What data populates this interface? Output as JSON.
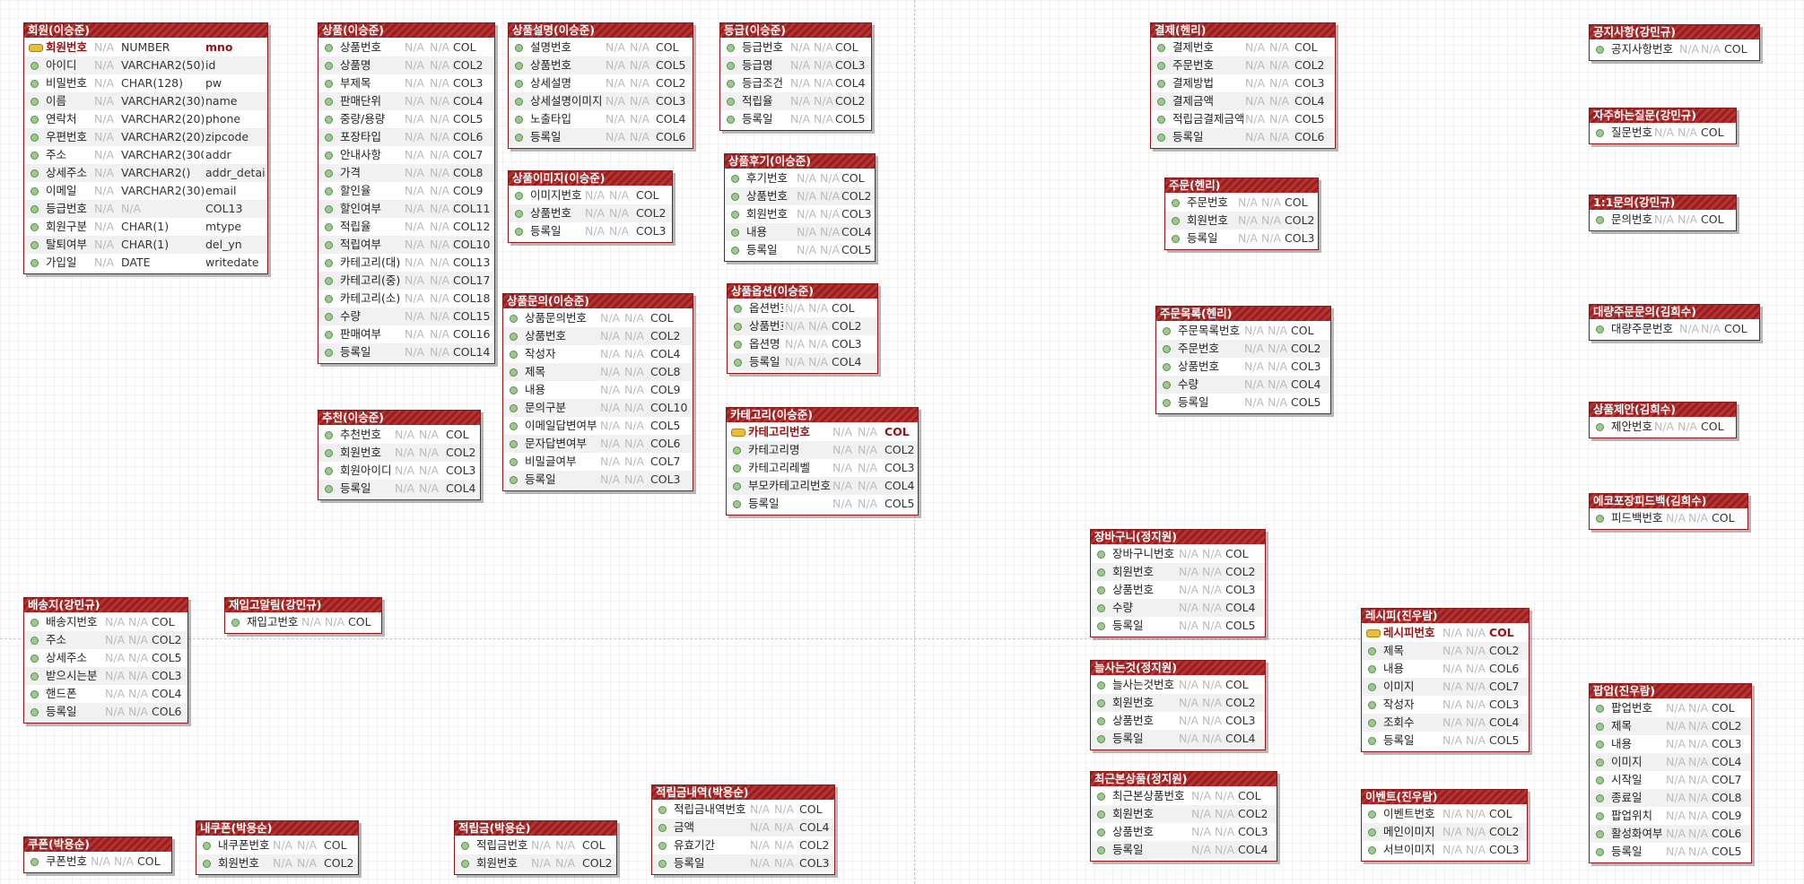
{
  "colors": {
    "header": "#9a1e1e",
    "pk_text": "#9b0f0f",
    "pk_icon": "#e7bf3c",
    "attr_icon": "#9cc98e"
  },
  "entities": [
    {
      "title": "회원(이승준)",
      "attrs": [
        {
          "name": "회원번호",
          "null": "N/A",
          "type": "NUMBER",
          "col": "mno",
          "pk": true
        },
        {
          "name": "아이디",
          "null": "N/A",
          "type": "VARCHAR2(50)",
          "col": "id"
        },
        {
          "name": "비밀번호",
          "null": "N/A",
          "type": "CHAR(128)",
          "col": "pw"
        },
        {
          "name": "이름",
          "null": "N/A",
          "type": "VARCHAR2(30)",
          "col": "name"
        },
        {
          "name": "연락처",
          "null": "N/A",
          "type": "VARCHAR2(20)",
          "col": "phone"
        },
        {
          "name": "우편번호",
          "null": "N/A",
          "type": "VARCHAR2(20)",
          "col": "zipcode"
        },
        {
          "name": "주소",
          "null": "N/A",
          "type": "VARCHAR2(300)",
          "col": "addr"
        },
        {
          "name": "상세주소",
          "null": "N/A",
          "type": "VARCHAR2()",
          "col": "addr_detail"
        },
        {
          "name": "이메일",
          "null": "N/A",
          "type": "VARCHAR2(30)",
          "col": "email"
        },
        {
          "name": "등급번호",
          "null": "N/A",
          "type": "N/A",
          "col": "COL13"
        },
        {
          "name": "회원구분",
          "null": "N/A",
          "type": "CHAR(1)",
          "col": "mtype"
        },
        {
          "name": "탈퇴여부",
          "null": "N/A",
          "type": "CHAR(1)",
          "col": "del_yn"
        },
        {
          "name": "가입일",
          "null": "N/A",
          "type": "DATE",
          "col": "writedate"
        }
      ]
    },
    {
      "title": "상품(이승준)",
      "attrs": [
        {
          "name": "상품번호",
          "null": "N/A",
          "type": "N/A",
          "col": "COL"
        },
        {
          "name": "상품명",
          "null": "N/A",
          "type": "N/A",
          "col": "COL2"
        },
        {
          "name": "부제목",
          "null": "N/A",
          "type": "N/A",
          "col": "COL3"
        },
        {
          "name": "판매단위",
          "null": "N/A",
          "type": "N/A",
          "col": "COL4"
        },
        {
          "name": "중량/용량",
          "null": "N/A",
          "type": "N/A",
          "col": "COL5"
        },
        {
          "name": "포장타입",
          "null": "N/A",
          "type": "N/A",
          "col": "COL6"
        },
        {
          "name": "안내사항",
          "null": "N/A",
          "type": "N/A",
          "col": "COL7"
        },
        {
          "name": "가격",
          "null": "N/A",
          "type": "N/A",
          "col": "COL8"
        },
        {
          "name": "할인율",
          "null": "N/A",
          "type": "N/A",
          "col": "COL9"
        },
        {
          "name": "할인여부",
          "null": "N/A",
          "type": "N/A",
          "col": "COL11"
        },
        {
          "name": "적립율",
          "null": "N/A",
          "type": "N/A",
          "col": "COL12"
        },
        {
          "name": "적립여부",
          "null": "N/A",
          "type": "N/A",
          "col": "COL10"
        },
        {
          "name": "카테고리(대)",
          "null": "N/A",
          "type": "N/A",
          "col": "COL13"
        },
        {
          "name": "카테고리(중)",
          "null": "N/A",
          "type": "N/A",
          "col": "COL17"
        },
        {
          "name": "카테고리(소)",
          "null": "N/A",
          "type": "N/A",
          "col": "COL18"
        },
        {
          "name": "수량",
          "null": "N/A",
          "type": "N/A",
          "col": "COL15"
        },
        {
          "name": "판매여부",
          "null": "N/A",
          "type": "N/A",
          "col": "COL16"
        },
        {
          "name": "등록일",
          "null": "N/A",
          "type": "N/A",
          "col": "COL14"
        }
      ]
    },
    {
      "title": "상품설명(이승준)",
      "attrs": [
        {
          "name": "설명번호",
          "null": "N/A",
          "type": "N/A",
          "col": "COL"
        },
        {
          "name": "상품번호",
          "null": "N/A",
          "type": "N/A",
          "col": "COL5"
        },
        {
          "name": "상세설명",
          "null": "N/A",
          "type": "N/A",
          "col": "COL2"
        },
        {
          "name": "상세설명이미지",
          "null": "N/A",
          "type": "N/A",
          "col": "COL3"
        },
        {
          "name": "노출타입",
          "null": "N/A",
          "type": "N/A",
          "col": "COL4"
        },
        {
          "name": "등록일",
          "null": "N/A",
          "type": "N/A",
          "col": "COL6"
        }
      ]
    },
    {
      "title": "등급(이승준)",
      "attrs": [
        {
          "name": "등급번호",
          "null": "N/A",
          "type": "N/A",
          "col": "COL"
        },
        {
          "name": "등급명",
          "null": "N/A",
          "type": "N/A",
          "col": "COL3"
        },
        {
          "name": "등급조건",
          "null": "N/A",
          "type": "N/A",
          "col": "COL4"
        },
        {
          "name": "적립율",
          "null": "N/A",
          "type": "N/A",
          "col": "COL2"
        },
        {
          "name": "등록일",
          "null": "N/A",
          "type": "N/A",
          "col": "COL5"
        }
      ]
    },
    {
      "title": "상품이미지(이승준)",
      "attrs": [
        {
          "name": "이미지번호",
          "null": "N/A",
          "type": "N/A",
          "col": "COL"
        },
        {
          "name": "상품번호",
          "null": "N/A",
          "type": "N/A",
          "col": "COL2"
        },
        {
          "name": "등록일",
          "null": "N/A",
          "type": "N/A",
          "col": "COL3"
        }
      ]
    },
    {
      "title": "상품후기(이승준)",
      "attrs": [
        {
          "name": "후기번호",
          "null": "N/A",
          "type": "N/A",
          "col": "COL"
        },
        {
          "name": "상품번호",
          "null": "N/A",
          "type": "N/A",
          "col": "COL2"
        },
        {
          "name": "회원번호",
          "null": "N/A",
          "type": "N/A",
          "col": "COL3"
        },
        {
          "name": "내용",
          "null": "N/A",
          "type": "N/A",
          "col": "COL4"
        },
        {
          "name": "등록일",
          "null": "N/A",
          "type": "N/A",
          "col": "COL5"
        }
      ]
    },
    {
      "title": "상품옵션(이승준)",
      "attrs": [
        {
          "name": "옵션번호",
          "null": "N/A",
          "type": "N/A",
          "col": "COL"
        },
        {
          "name": "상품번호",
          "null": "N/A",
          "type": "N/A",
          "col": "COL2"
        },
        {
          "name": "옵션명",
          "null": "N/A",
          "type": "N/A",
          "col": "COL3"
        },
        {
          "name": "등록일",
          "null": "N/A",
          "type": "N/A",
          "col": "COL4"
        }
      ]
    },
    {
      "title": "상품문의(이승준)",
      "attrs": [
        {
          "name": "상품문의번호",
          "null": "N/A",
          "type": "N/A",
          "col": "COL"
        },
        {
          "name": "상품번호",
          "null": "N/A",
          "type": "N/A",
          "col": "COL2"
        },
        {
          "name": "작성자",
          "null": "N/A",
          "type": "N/A",
          "col": "COL4"
        },
        {
          "name": "제목",
          "null": "N/A",
          "type": "N/A",
          "col": "COL8"
        },
        {
          "name": "내용",
          "null": "N/A",
          "type": "N/A",
          "col": "COL9"
        },
        {
          "name": "문의구분",
          "null": "N/A",
          "type": "N/A",
          "col": "COL10"
        },
        {
          "name": "이메일답변여부",
          "null": "N/A",
          "type": "N/A",
          "col": "COL5"
        },
        {
          "name": "문자답변여부",
          "null": "N/A",
          "type": "N/A",
          "col": "COL6"
        },
        {
          "name": "비밀글여부",
          "null": "N/A",
          "type": "N/A",
          "col": "COL7"
        },
        {
          "name": "등록일",
          "null": "N/A",
          "type": "N/A",
          "col": "COL3"
        }
      ]
    },
    {
      "title": "추천(이승준)",
      "attrs": [
        {
          "name": "추천번호",
          "null": "N/A",
          "type": "N/A",
          "col": "COL"
        },
        {
          "name": "회원번호",
          "null": "N/A",
          "type": "N/A",
          "col": "COL2"
        },
        {
          "name": "회원아이디",
          "null": "N/A",
          "type": "N/A",
          "col": "COL3"
        },
        {
          "name": "등록일",
          "null": "N/A",
          "type": "N/A",
          "col": "COL4"
        }
      ]
    },
    {
      "title": "카테고리(이승준)",
      "attrs": [
        {
          "name": "카테고리번호",
          "null": "N/A",
          "type": "N/A",
          "col": "COL",
          "pk": true
        },
        {
          "name": "카테고리명",
          "null": "N/A",
          "type": "N/A",
          "col": "COL2"
        },
        {
          "name": "카테고리레벨",
          "null": "N/A",
          "type": "N/A",
          "col": "COL3"
        },
        {
          "name": "부모카테고리번호",
          "null": "N/A",
          "type": "N/A",
          "col": "COL4"
        },
        {
          "name": "등록일",
          "null": "N/A",
          "type": "N/A",
          "col": "COL5"
        }
      ]
    },
    {
      "title": "결제(헨리)",
      "attrs": [
        {
          "name": "결제번호",
          "null": "N/A",
          "type": "N/A",
          "col": "COL"
        },
        {
          "name": "주문번호",
          "null": "N/A",
          "type": "N/A",
          "col": "COL2"
        },
        {
          "name": "결제방법",
          "null": "N/A",
          "type": "N/A",
          "col": "COL3"
        },
        {
          "name": "결제금액",
          "null": "N/A",
          "type": "N/A",
          "col": "COL4"
        },
        {
          "name": "적립금결제금액",
          "null": "N/A",
          "type": "N/A",
          "col": "COL5"
        },
        {
          "name": "등록일",
          "null": "N/A",
          "type": "N/A",
          "col": "COL6"
        }
      ]
    },
    {
      "title": "주문(헨리)",
      "attrs": [
        {
          "name": "주문번호",
          "null": "N/A",
          "type": "N/A",
          "col": "COL"
        },
        {
          "name": "회원번호",
          "null": "N/A",
          "type": "N/A",
          "col": "COL2"
        },
        {
          "name": "등록일",
          "null": "N/A",
          "type": "N/A",
          "col": "COL3"
        }
      ]
    },
    {
      "title": "주문목록(헨리)",
      "attrs": [
        {
          "name": "주문목록번호",
          "null": "N/A",
          "type": "N/A",
          "col": "COL"
        },
        {
          "name": "주문번호",
          "null": "N/A",
          "type": "N/A",
          "col": "COL2"
        },
        {
          "name": "상품번호",
          "null": "N/A",
          "type": "N/A",
          "col": "COL3"
        },
        {
          "name": "수량",
          "null": "N/A",
          "type": "N/A",
          "col": "COL4"
        },
        {
          "name": "등록일",
          "null": "N/A",
          "type": "N/A",
          "col": "COL5"
        }
      ]
    },
    {
      "title": "공지사항(강민규)",
      "attrs": [
        {
          "name": "공지사항번호",
          "null": "N/A",
          "type": "N/A",
          "col": "COL"
        }
      ]
    },
    {
      "title": "자주하는질문(강민규)",
      "attrs": [
        {
          "name": "질문번호",
          "null": "N/A",
          "type": "N/A",
          "col": "COL"
        }
      ]
    },
    {
      "title": "1:1문의(강민규)",
      "attrs": [
        {
          "name": "문의번호",
          "null": "N/A",
          "type": "N/A",
          "col": "COL"
        }
      ]
    },
    {
      "title": "대량주문문의(김희수)",
      "attrs": [
        {
          "name": "대량주문번호",
          "null": "N/A",
          "type": "N/A",
          "col": "COL"
        }
      ]
    },
    {
      "title": "상품제안(김희수)",
      "attrs": [
        {
          "name": "제안번호",
          "null": "N/A",
          "type": "N/A",
          "col": "COL"
        }
      ]
    },
    {
      "title": "에코포장피드백(김희수)",
      "attrs": [
        {
          "name": "피드백번호",
          "null": "N/A",
          "type": "N/A",
          "col": "COL"
        }
      ]
    },
    {
      "title": "장바구니(정지원)",
      "attrs": [
        {
          "name": "장바구니번호",
          "null": "N/A",
          "type": "N/A",
          "col": "COL"
        },
        {
          "name": "회원번호",
          "null": "N/A",
          "type": "N/A",
          "col": "COL2"
        },
        {
          "name": "상품번호",
          "null": "N/A",
          "type": "N/A",
          "col": "COL3"
        },
        {
          "name": "수량",
          "null": "N/A",
          "type": "N/A",
          "col": "COL4"
        },
        {
          "name": "등록일",
          "null": "N/A",
          "type": "N/A",
          "col": "COL5"
        }
      ]
    },
    {
      "title": "늘사는것(정지원)",
      "attrs": [
        {
          "name": "늘사는것번호",
          "null": "N/A",
          "type": "N/A",
          "col": "COL"
        },
        {
          "name": "회원번호",
          "null": "N/A",
          "type": "N/A",
          "col": "COL2"
        },
        {
          "name": "상품번호",
          "null": "N/A",
          "type": "N/A",
          "col": "COL3"
        },
        {
          "name": "등록일",
          "null": "N/A",
          "type": "N/A",
          "col": "COL4"
        }
      ]
    },
    {
      "title": "최근본상품(정지원)",
      "attrs": [
        {
          "name": "최근본상품번호",
          "null": "N/A",
          "type": "N/A",
          "col": "COL"
        },
        {
          "name": "회원번호",
          "null": "N/A",
          "type": "N/A",
          "col": "COL2"
        },
        {
          "name": "상품번호",
          "null": "N/A",
          "type": "N/A",
          "col": "COL3"
        },
        {
          "name": "등록일",
          "null": "N/A",
          "type": "N/A",
          "col": "COL4"
        }
      ]
    },
    {
      "title": "레시피(진우람)",
      "attrs": [
        {
          "name": "레시피번호",
          "null": "N/A",
          "type": "N/A",
          "col": "COL",
          "pk": true
        },
        {
          "name": "제목",
          "null": "N/A",
          "type": "N/A",
          "col": "COL2"
        },
        {
          "name": "내용",
          "null": "N/A",
          "type": "N/A",
          "col": "COL6"
        },
        {
          "name": "이미지",
          "null": "N/A",
          "type": "N/A",
          "col": "COL7"
        },
        {
          "name": "작성자",
          "null": "N/A",
          "type": "N/A",
          "col": "COL3"
        },
        {
          "name": "조회수",
          "null": "N/A",
          "type": "N/A",
          "col": "COL4"
        },
        {
          "name": "등록일",
          "null": "N/A",
          "type": "N/A",
          "col": "COL5"
        }
      ]
    },
    {
      "title": "이벤트(진우람)",
      "attrs": [
        {
          "name": "이벤트번호",
          "null": "N/A",
          "type": "N/A",
          "col": "COL"
        },
        {
          "name": "메인이미지",
          "null": "N/A",
          "type": "N/A",
          "col": "COL2"
        },
        {
          "name": "서브이미지",
          "null": "N/A",
          "type": "N/A",
          "col": "COL3"
        }
      ]
    },
    {
      "title": "팝업(진우람)",
      "attrs": [
        {
          "name": "팝업번호",
          "null": "N/A",
          "type": "N/A",
          "col": "COL"
        },
        {
          "name": "제목",
          "null": "N/A",
          "type": "N/A",
          "col": "COL2"
        },
        {
          "name": "내용",
          "null": "N/A",
          "type": "N/A",
          "col": "COL3"
        },
        {
          "name": "이미지",
          "null": "N/A",
          "type": "N/A",
          "col": "COL4"
        },
        {
          "name": "시작일",
          "null": "N/A",
          "type": "N/A",
          "col": "COL7"
        },
        {
          "name": "종료일",
          "null": "N/A",
          "type": "N/A",
          "col": "COL8"
        },
        {
          "name": "팝업위치",
          "null": "N/A",
          "type": "N/A",
          "col": "COL9"
        },
        {
          "name": "활성화여부",
          "null": "N/A",
          "type": "N/A",
          "col": "COL6"
        },
        {
          "name": "등록일",
          "null": "N/A",
          "type": "N/A",
          "col": "COL5"
        }
      ]
    },
    {
      "title": "배송지(강민규)",
      "attrs": [
        {
          "name": "배송지번호",
          "null": "N/A",
          "type": "N/A",
          "col": "COL"
        },
        {
          "name": "주소",
          "null": "N/A",
          "type": "N/A",
          "col": "COL2"
        },
        {
          "name": "상세주소",
          "null": "N/A",
          "type": "N/A",
          "col": "COL5"
        },
        {
          "name": "받으시는분",
          "null": "N/A",
          "type": "N/A",
          "col": "COL3"
        },
        {
          "name": "핸드폰",
          "null": "N/A",
          "type": "N/A",
          "col": "COL4"
        },
        {
          "name": "등록일",
          "null": "N/A",
          "type": "N/A",
          "col": "COL6"
        }
      ]
    },
    {
      "title": "재입고알림(강민규)",
      "attrs": [
        {
          "name": "재입고번호",
          "null": "N/A",
          "type": "N/A",
          "col": "COL"
        }
      ]
    },
    {
      "title": "적립금내역(박용순)",
      "attrs": [
        {
          "name": "적립금내역번호",
          "null": "N/A",
          "type": "N/A",
          "col": "COL"
        },
        {
          "name": "금액",
          "null": "N/A",
          "type": "N/A",
          "col": "COL4"
        },
        {
          "name": "유효기간",
          "null": "N/A",
          "type": "N/A",
          "col": "COL2"
        },
        {
          "name": "등록일",
          "null": "N/A",
          "type": "N/A",
          "col": "COL3"
        }
      ]
    },
    {
      "title": "쿠폰(박용순)",
      "attrs": [
        {
          "name": "쿠폰번호",
          "null": "N/A",
          "type": "N/A",
          "col": "COL"
        }
      ]
    },
    {
      "title": "내쿠폰(박용순)",
      "attrs": [
        {
          "name": "내쿠폰번호",
          "null": "N/A",
          "type": "N/A",
          "col": "COL"
        },
        {
          "name": "회원번호",
          "null": "N/A",
          "type": "N/A",
          "col": "COL2"
        }
      ]
    },
    {
      "title": "적립금(박용순)",
      "attrs": [
        {
          "name": "적립금번호",
          "null": "N/A",
          "type": "N/A",
          "col": "COL"
        },
        {
          "name": "회원번호",
          "null": "N/A",
          "type": "N/A",
          "col": "COL2"
        }
      ]
    }
  ]
}
